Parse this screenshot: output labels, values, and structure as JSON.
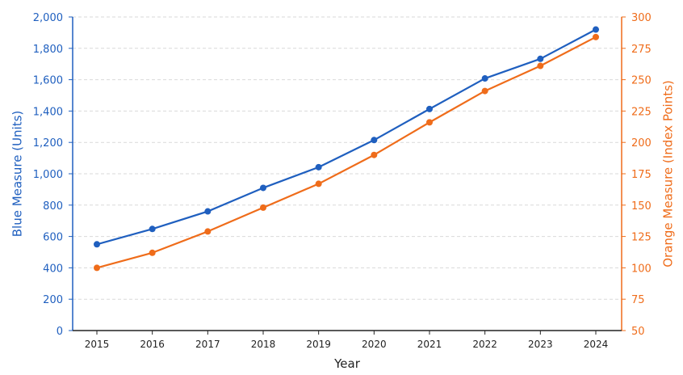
{
  "chart_data": {
    "type": "line",
    "title": "",
    "x": [
      "2015",
      "2016",
      "2017",
      "2018",
      "2019",
      "2020",
      "2021",
      "2022",
      "2023",
      "2024"
    ],
    "xlabel": "Year",
    "grid": true,
    "legend": "none",
    "axes": {
      "left": {
        "label": "Blue Measure (Units)",
        "range": [
          0,
          2000
        ],
        "ticks": [
          0,
          200,
          400,
          600,
          800,
          1000,
          1200,
          1400,
          1600,
          1800,
          2000
        ],
        "color": "#1f5fbf"
      },
      "right": {
        "label": "Orange Measure (Index Points)",
        "range": [
          50,
          300
        ],
        "ticks": [
          50,
          75,
          100,
          125,
          150,
          175,
          200,
          225,
          250,
          275,
          300
        ],
        "color": "#ef6c1a"
      }
    },
    "series": [
      {
        "axis": "left",
        "color": "#1f5fbf",
        "values": [
          550,
          648,
          760,
          910,
          1042,
          1215,
          1413,
          1608,
          1733,
          1920
        ]
      },
      {
        "axis": "right",
        "color": "#ef6c1a",
        "values": [
          100,
          112,
          129,
          148,
          167,
          190,
          216,
          241,
          261,
          284
        ]
      }
    ]
  }
}
